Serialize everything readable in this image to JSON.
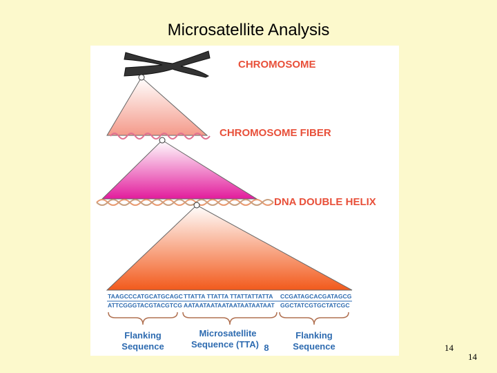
{
  "title": "Microsatellite Analysis",
  "diagram": {
    "levels": [
      "CHROMOSOME",
      "CHROMOSOME FIBER",
      "DNA DOUBLE HELIX"
    ],
    "sequence": {
      "top": [
        "TAAGCCCATGCATGCAGC",
        "TTATTA TTATTA TTATTATTATTA",
        "CCGATAGCACGATAGCG"
      ],
      "bottom": [
        "ATTCGGGTACGTACGTCG",
        "AATAATAATAATAATAATAATAAT",
        "GGCTATCGTGCTATCGC"
      ]
    },
    "regions": [
      {
        "line1": "Flanking",
        "line2": "Sequence"
      },
      {
        "line1": "Microsatellite",
        "line2": "Sequence (TTA)",
        "subscript": "8"
      },
      {
        "line1": "Flanking",
        "line2": "Sequence"
      }
    ]
  },
  "image_page_number": "14",
  "slide_number": "14"
}
